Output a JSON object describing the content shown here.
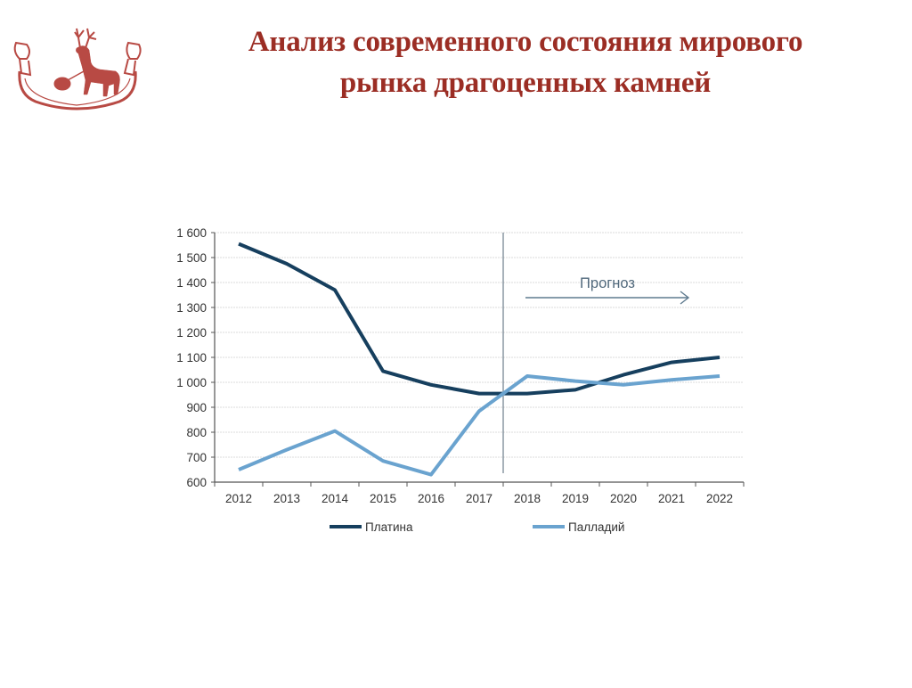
{
  "slide": {
    "title_line1": "Анализ современного состояния мирового",
    "title_line2": "рынка драгоценных  камней",
    "logo_icon": "deer-emblem-icon",
    "accent_color": "#9b2d24"
  },
  "chart_data": {
    "type": "line",
    "title": "",
    "xlabel": "",
    "ylabel": "",
    "ylim": [
      600,
      1600
    ],
    "yticks": [
      600,
      700,
      800,
      900,
      1000,
      1100,
      1200,
      1300,
      1400,
      1500,
      1600
    ],
    "ytick_labels": [
      "600",
      "700",
      "800",
      "900",
      "1 000",
      "1 100",
      "1 200",
      "1 300",
      "1 400",
      "1 500",
      "1 600"
    ],
    "categories": [
      "2012",
      "2013",
      "2014",
      "2015",
      "2016",
      "2017",
      "2018",
      "2019",
      "2020",
      "2021",
      "2022"
    ],
    "grid": true,
    "legend_position": "bottom",
    "series": [
      {
        "name": "Платина",
        "color": "#163f5e",
        "values": [
          1555,
          1475,
          1370,
          1045,
          990,
          955,
          955,
          970,
          1030,
          1080,
          1100
        ]
      },
      {
        "name": "Палладий",
        "color": "#6aa3cf",
        "values": [
          650,
          730,
          805,
          685,
          630,
          885,
          1025,
          1005,
          990,
          1010,
          1025
        ]
      }
    ],
    "annotations": [
      {
        "type": "vline",
        "between": [
          "2017",
          "2018"
        ],
        "label": ""
      },
      {
        "type": "arrow",
        "label": "Прогноз",
        "from": "2018",
        "to": "2022"
      }
    ]
  }
}
